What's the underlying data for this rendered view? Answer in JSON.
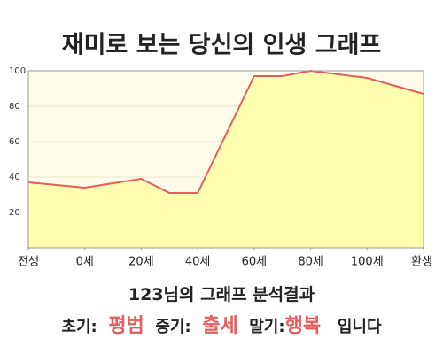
{
  "chart_data": {
    "type": "area",
    "title": "재미로 보는 당신의 인생 그래프",
    "x": [
      -20,
      0,
      20,
      30,
      40,
      60,
      70,
      80,
      100,
      120
    ],
    "values": [
      37,
      34,
      39,
      31,
      31,
      97,
      97,
      100,
      96,
      87
    ],
    "color": "#e85c5c",
    "fill": "#ffffb0",
    "xlim": [
      -20,
      120
    ],
    "xticks": [
      {
        "value": -20,
        "label": "전생"
      },
      {
        "value": 0,
        "label": "0세"
      },
      {
        "value": 20,
        "label": "20세"
      },
      {
        "value": 40,
        "label": "40세"
      },
      {
        "value": 60,
        "label": "60세"
      },
      {
        "value": 80,
        "label": "80세"
      },
      {
        "value": 100,
        "label": "100세"
      },
      {
        "value": 120,
        "label": "환생"
      }
    ],
    "ylim": [
      0,
      100
    ],
    "yticks": [
      20,
      40,
      60,
      80,
      100
    ],
    "grid": true
  },
  "result": {
    "heading": "123님의 그래프 분석결과",
    "early_label": "초기:",
    "early": "평범",
    "mid_label": "중기:",
    "mid": "출세",
    "late_label": "말기:",
    "late": "행복",
    "ending": "입니다"
  }
}
